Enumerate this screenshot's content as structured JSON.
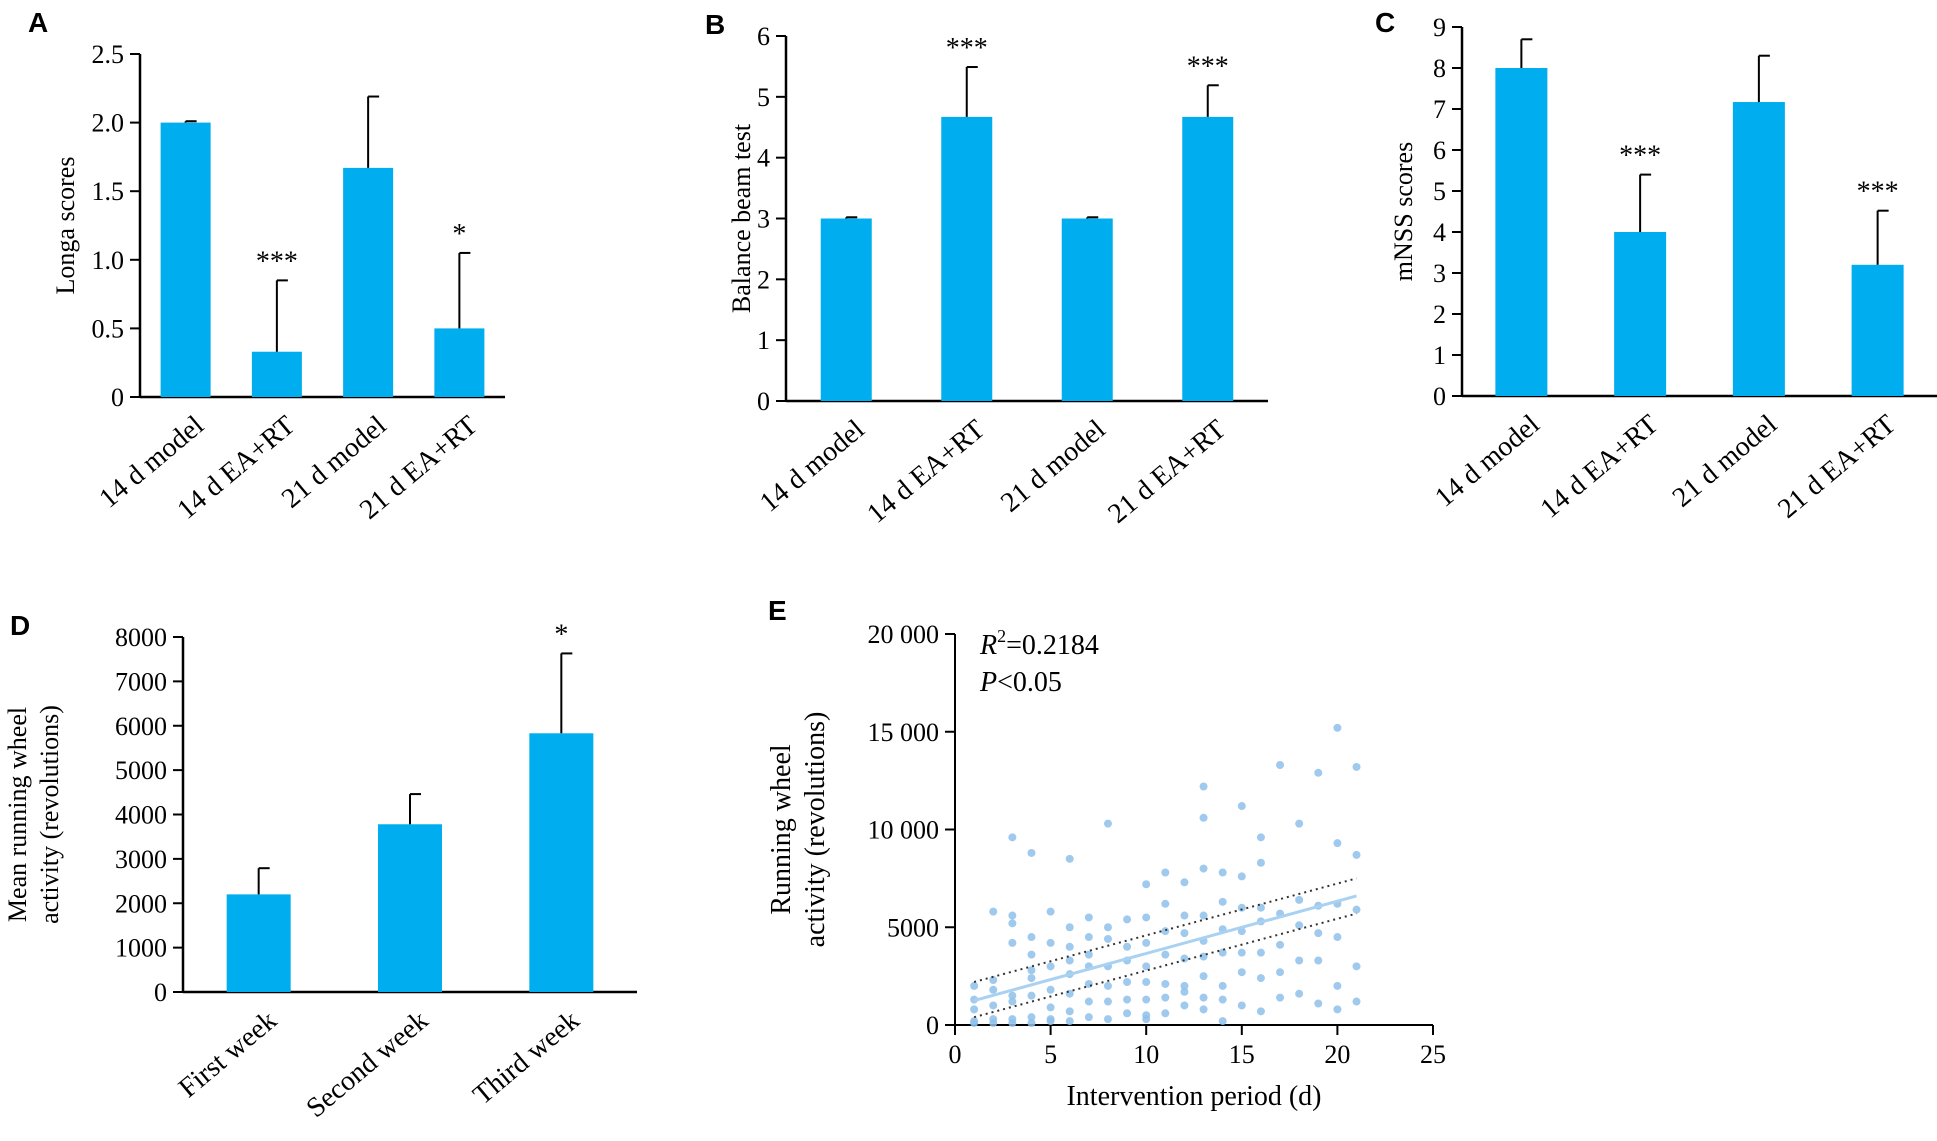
{
  "colors": {
    "bar": "#00AEEF",
    "axis": "#000000",
    "scatter": "#8FC1EA",
    "fit": "#A9D1F2",
    "ci": "#333333"
  },
  "chart_data": [
    {
      "panel": "A",
      "type": "bar",
      "categories": [
        "14 d model",
        "14 d EA+RT",
        "21 d model",
        "21 d EA+RT"
      ],
      "values": [
        2.0,
        0.33,
        1.67,
        0.5
      ],
      "errors": [
        0.01,
        0.52,
        0.52,
        0.55
      ],
      "significance": [
        "",
        "***",
        "",
        "*"
      ],
      "ylabel": "Longa scores",
      "ylim": [
        0,
        2.5
      ],
      "yticks": [
        "0",
        "0.5",
        "1.0",
        "1.5",
        "2.0",
        "2.5"
      ]
    },
    {
      "panel": "B",
      "type": "bar",
      "categories": [
        "14 d model",
        "14 d EA+RT",
        "21 d model",
        "21 d EA+RT"
      ],
      "values": [
        3.0,
        4.67,
        3.0,
        4.67
      ],
      "errors": [
        0.02,
        0.82,
        0.02,
        0.52
      ],
      "significance": [
        "",
        "***",
        "",
        "***"
      ],
      "ylabel": "Balance beam test",
      "ylim": [
        0,
        6
      ],
      "yticks": [
        "0",
        "1",
        "2",
        "3",
        "4",
        "5",
        "6"
      ]
    },
    {
      "panel": "C",
      "type": "bar",
      "categories": [
        "14 d model",
        "14 d EA+RT",
        "21 d model",
        "21 d EA+RT"
      ],
      "values": [
        8.0,
        4.0,
        7.17,
        3.2
      ],
      "errors": [
        0.7,
        1.4,
        1.13,
        1.32
      ],
      "significance": [
        "",
        "***",
        "",
        "***"
      ],
      "ylabel": "mNSS scores",
      "ylim": [
        0,
        9
      ],
      "yticks": [
        "0",
        "1",
        "2",
        "3",
        "4",
        "5",
        "6",
        "7",
        "8",
        "9"
      ]
    },
    {
      "panel": "D",
      "type": "bar",
      "categories": [
        "First week",
        "Second week",
        "Third week"
      ],
      "values": [
        2200,
        3780,
        5830
      ],
      "errors": [
        590,
        680,
        1800
      ],
      "significance": [
        "",
        "",
        "*"
      ],
      "ylabel": [
        "Mean running wheel",
        "activity (revolutions)"
      ],
      "ylim": [
        0,
        8000
      ],
      "yticks": [
        "0",
        "1000",
        "2000",
        "3000",
        "4000",
        "5000",
        "6000",
        "7000",
        "8000"
      ]
    },
    {
      "panel": "E",
      "type": "scatter",
      "xlabel": "Intervention period (d)",
      "ylabel": [
        "Running wheel",
        "activity (revolutions)"
      ],
      "xlim": [
        0,
        25
      ],
      "ylim": [
        0,
        20000
      ],
      "xticks": [
        "0",
        "5",
        "10",
        "15",
        "20",
        "25"
      ],
      "yticks": [
        "0",
        "5000",
        "10 000",
        "15 000",
        "20 000"
      ],
      "annotation": {
        "r2_sym": "R",
        "r2_sup": "2",
        "r2_val": "=0.2184",
        "p_sym": "P",
        "p_val": "<0.05"
      },
      "fit": {
        "x": [
          1,
          21
        ],
        "y": [
          1250,
          6600
        ]
      },
      "ci_upper": {
        "x": [
          1,
          21
        ],
        "y": [
          2200,
          7500
        ]
      },
      "ci_lower": {
        "x": [
          1,
          21
        ],
        "y": [
          400,
          5700
        ]
      },
      "points": [
        [
          1,
          200
        ],
        [
          1,
          800
        ],
        [
          1,
          2000
        ],
        [
          1,
          100
        ],
        [
          1,
          1300
        ],
        [
          2,
          5800
        ],
        [
          2,
          2300
        ],
        [
          2,
          1000
        ],
        [
          2,
          300
        ],
        [
          2,
          1800
        ],
        [
          2,
          100
        ],
        [
          3,
          9600
        ],
        [
          3,
          5600
        ],
        [
          3,
          5200
        ],
        [
          3,
          4200
        ],
        [
          3,
          1500
        ],
        [
          3,
          300
        ],
        [
          3,
          100
        ],
        [
          3,
          1200
        ],
        [
          4,
          8800
        ],
        [
          4,
          4500
        ],
        [
          4,
          3600
        ],
        [
          4,
          2800
        ],
        [
          4,
          1500
        ],
        [
          4,
          400
        ],
        [
          4,
          100
        ],
        [
          4,
          2400
        ],
        [
          5,
          5800
        ],
        [
          5,
          4200
        ],
        [
          5,
          3000
        ],
        [
          5,
          1800
        ],
        [
          5,
          900
        ],
        [
          5,
          200
        ],
        [
          5,
          300
        ],
        [
          6,
          8500
        ],
        [
          6,
          5000
        ],
        [
          6,
          3300
        ],
        [
          6,
          2600
        ],
        [
          6,
          1600
        ],
        [
          6,
          700
        ],
        [
          6,
          200
        ],
        [
          6,
          4000
        ],
        [
          7,
          5500
        ],
        [
          7,
          4500
        ],
        [
          7,
          3000
        ],
        [
          7,
          2100
        ],
        [
          7,
          1200
        ],
        [
          7,
          400
        ],
        [
          7,
          3600
        ],
        [
          8,
          10300
        ],
        [
          8,
          5000
        ],
        [
          8,
          3000
        ],
        [
          8,
          2000
        ],
        [
          8,
          1200
        ],
        [
          8,
          300
        ],
        [
          8,
          4400
        ],
        [
          9,
          5400
        ],
        [
          9,
          4000
        ],
        [
          9,
          3300
        ],
        [
          9,
          2200
        ],
        [
          9,
          1300
        ],
        [
          9,
          600
        ],
        [
          10,
          7200
        ],
        [
          10,
          5500
        ],
        [
          10,
          4200
        ],
        [
          10,
          3000
        ],
        [
          10,
          2200
        ],
        [
          10,
          1300
        ],
        [
          10,
          500
        ],
        [
          10,
          300
        ],
        [
          11,
          7800
        ],
        [
          11,
          6200
        ],
        [
          11,
          4800
        ],
        [
          11,
          3600
        ],
        [
          11,
          2100
        ],
        [
          11,
          1400
        ],
        [
          11,
          600
        ],
        [
          12,
          7300
        ],
        [
          12,
          5600
        ],
        [
          12,
          4700
        ],
        [
          12,
          3400
        ],
        [
          12,
          2000
        ],
        [
          12,
          1700
        ],
        [
          12,
          1000
        ],
        [
          13,
          12200
        ],
        [
          13,
          10600
        ],
        [
          13,
          8000
        ],
        [
          13,
          5600
        ],
        [
          13,
          4300
        ],
        [
          13,
          3500
        ],
        [
          13,
          2500
        ],
        [
          13,
          1400
        ],
        [
          13,
          800
        ],
        [
          14,
          7800
        ],
        [
          14,
          6300
        ],
        [
          14,
          4900
        ],
        [
          14,
          3700
        ],
        [
          14,
          2000
        ],
        [
          14,
          1300
        ],
        [
          14,
          200
        ],
        [
          15,
          11200
        ],
        [
          15,
          7600
        ],
        [
          15,
          6000
        ],
        [
          15,
          4800
        ],
        [
          15,
          3700
        ],
        [
          15,
          2700
        ],
        [
          15,
          1000
        ],
        [
          16,
          9600
        ],
        [
          16,
          8300
        ],
        [
          16,
          6000
        ],
        [
          16,
          5300
        ],
        [
          16,
          3700
        ],
        [
          16,
          2400
        ],
        [
          16,
          700
        ],
        [
          17,
          13300
        ],
        [
          17,
          5700
        ],
        [
          17,
          4100
        ],
        [
          17,
          2700
        ],
        [
          17,
          1400
        ],
        [
          18,
          10300
        ],
        [
          18,
          6400
        ],
        [
          18,
          5100
        ],
        [
          18,
          3300
        ],
        [
          18,
          1600
        ],
        [
          19,
          12900
        ],
        [
          19,
          6100
        ],
        [
          19,
          4700
        ],
        [
          19,
          3300
        ],
        [
          19,
          1100
        ],
        [
          20,
          15200
        ],
        [
          20,
          9300
        ],
        [
          20,
          6200
        ],
        [
          20,
          4500
        ],
        [
          20,
          2000
        ],
        [
          20,
          800
        ],
        [
          21,
          13200
        ],
        [
          21,
          8700
        ],
        [
          21,
          5900
        ],
        [
          21,
          3000
        ],
        [
          21,
          1200
        ]
      ]
    }
  ]
}
